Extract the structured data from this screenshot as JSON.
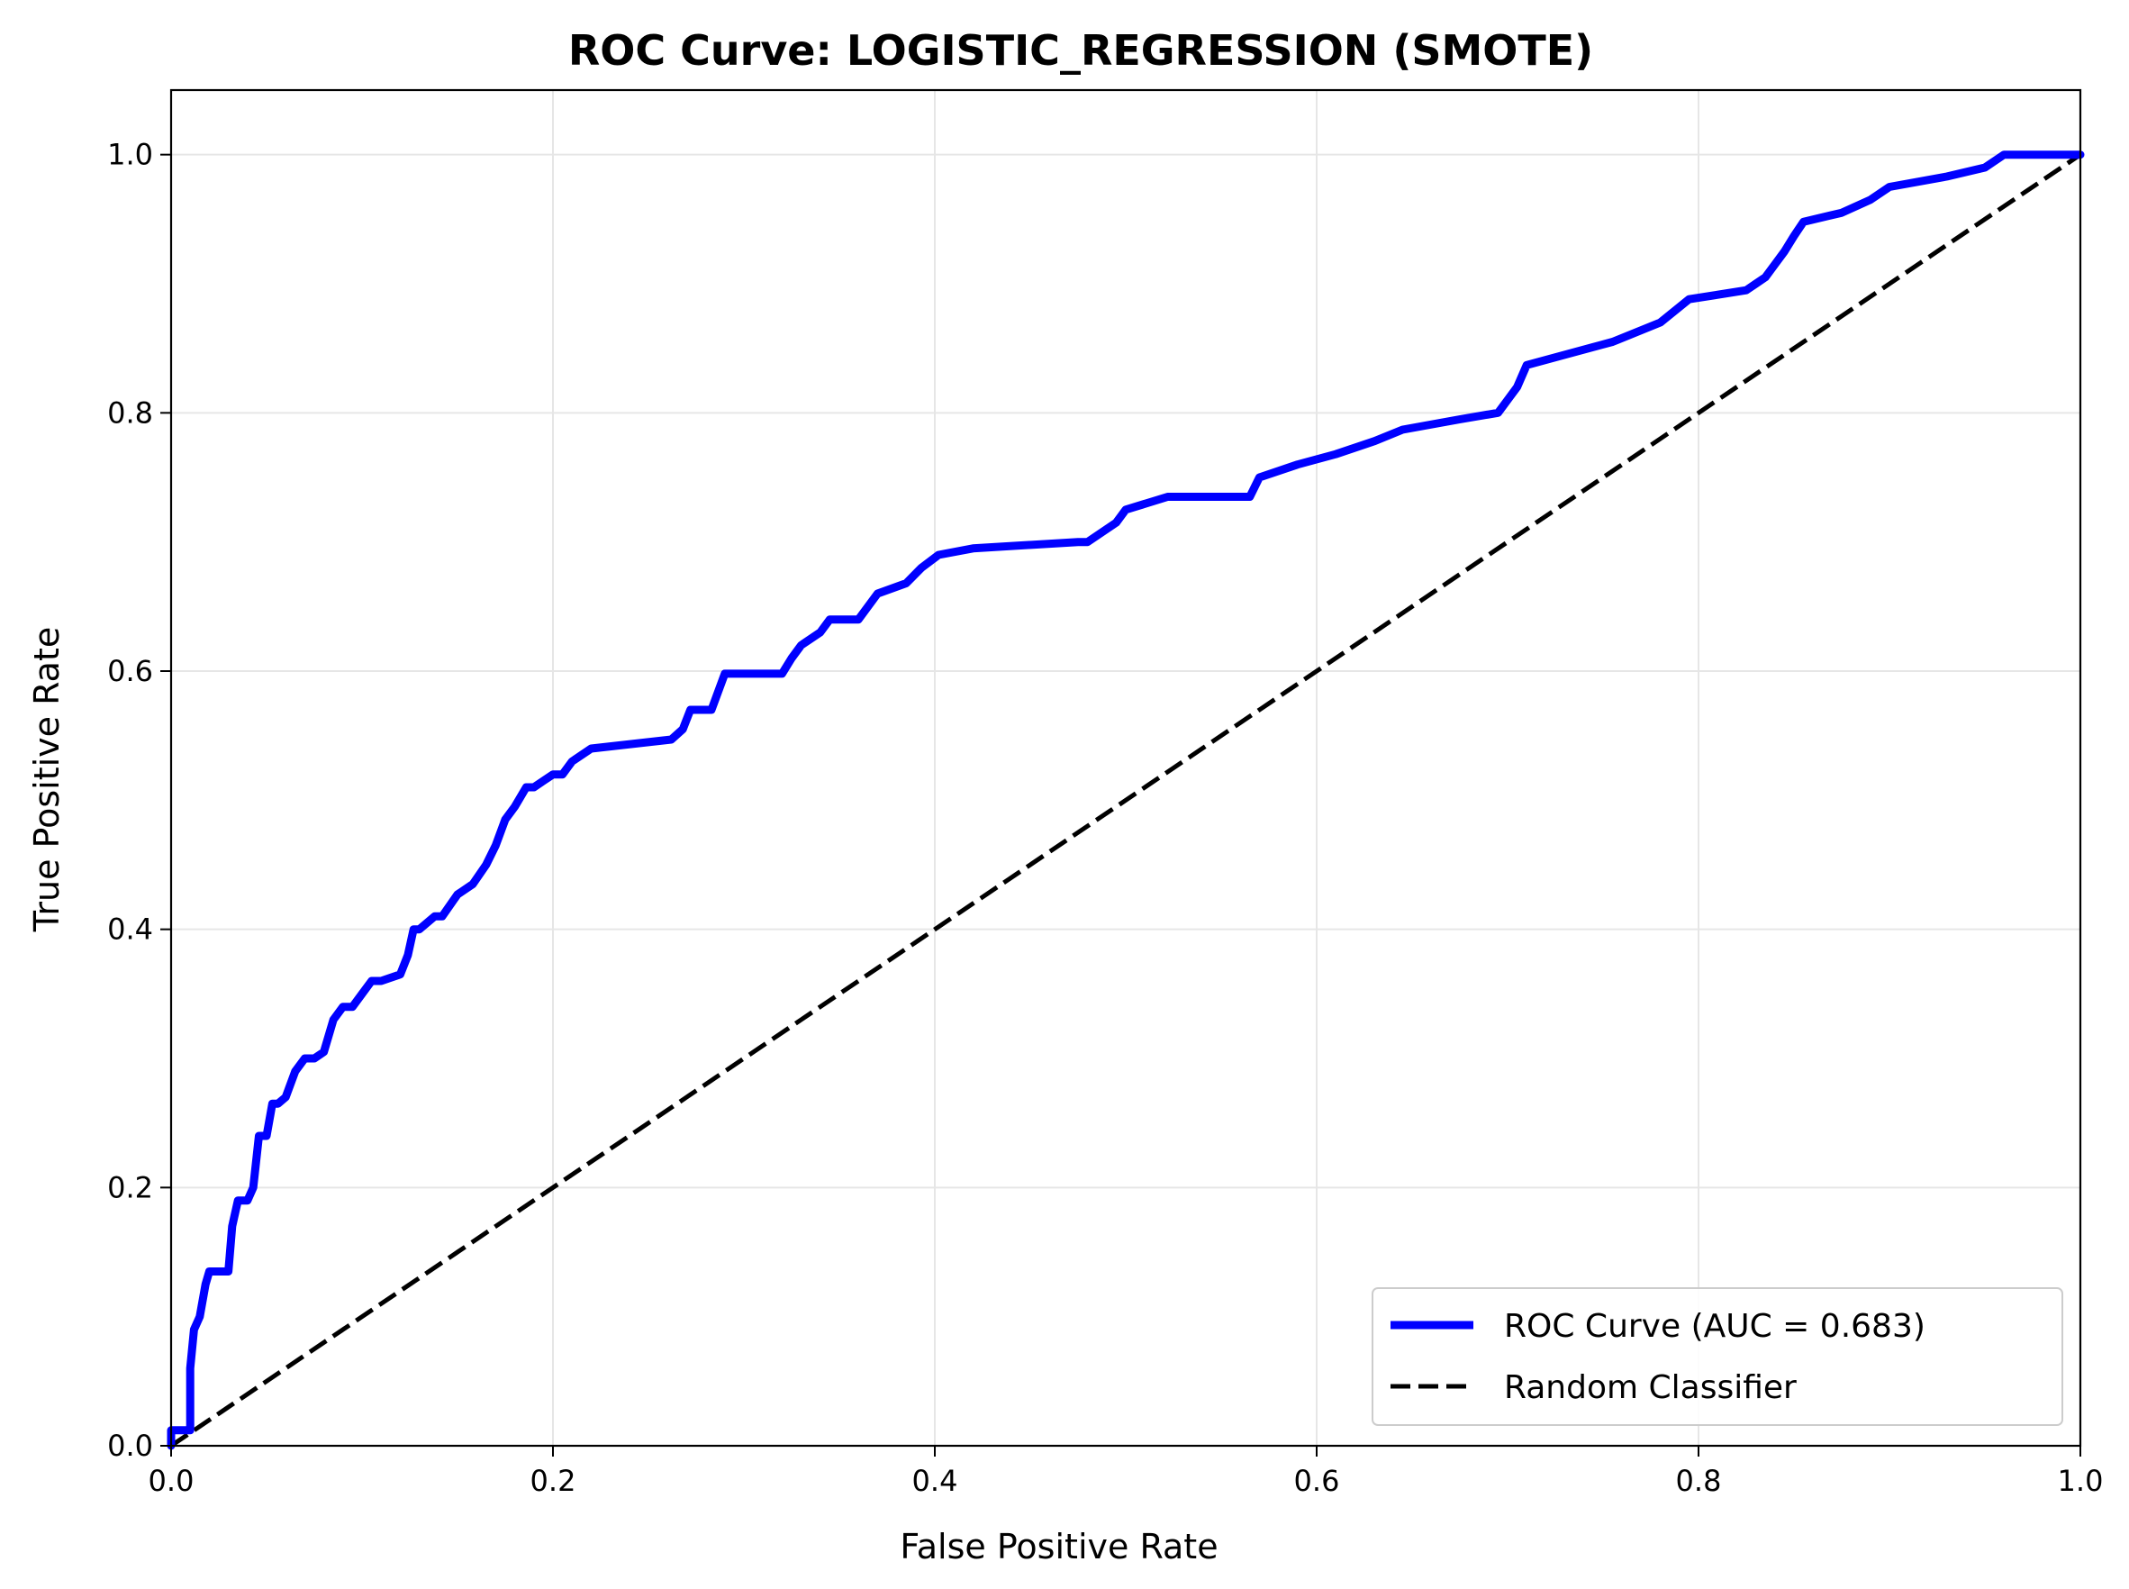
{
  "chart_data": {
    "type": "line",
    "title": "ROC Curve: LOGISTIC_REGRESSION (SMOTE)",
    "xlabel": "False Positive Rate",
    "ylabel": "True Positive Rate",
    "xlim": [
      0,
      1
    ],
    "ylim": [
      0,
      1.05
    ],
    "grid": true,
    "legend_position": "lower-right",
    "x_ticks": [
      "0.0",
      "0.2",
      "0.4",
      "0.6",
      "0.8",
      "1.0"
    ],
    "y_ticks": [
      "0.0",
      "0.2",
      "0.4",
      "0.6",
      "0.8",
      "1.0"
    ],
    "x_tick_values": [
      0,
      0.2,
      0.4,
      0.6,
      0.8,
      1.0
    ],
    "y_tick_values": [
      0,
      0.2,
      0.4,
      0.6,
      0.8,
      1.0
    ],
    "series": [
      {
        "name": "ROC Curve (AUC = 0.683)",
        "color": "#0000ff",
        "style": "solid",
        "x": [
          0,
          0,
          0.01,
          0.01,
          0.012,
          0.015,
          0.018,
          0.02,
          0.022,
          0.03,
          0.032,
          0.035,
          0.04,
          0.043,
          0.046,
          0.05,
          0.053,
          0.056,
          0.06,
          0.065,
          0.07,
          0.075,
          0.08,
          0.085,
          0.09,
          0.095,
          0.1,
          0.105,
          0.11,
          0.12,
          0.124,
          0.127,
          0.13,
          0.138,
          0.142,
          0.15,
          0.158,
          0.165,
          0.17,
          0.175,
          0.18,
          0.186,
          0.19,
          0.195,
          0.2,
          0.205,
          0.21,
          0.22,
          0.262,
          0.268,
          0.272,
          0.283,
          0.288,
          0.29,
          0.32,
          0.325,
          0.33,
          0.34,
          0.345,
          0.36,
          0.37,
          0.385,
          0.393,
          0.402,
          0.42,
          0.475,
          0.48,
          0.495,
          0.5,
          0.522,
          0.565,
          0.57,
          0.59,
          0.61,
          0.63,
          0.645,
          0.675,
          0.695,
          0.7,
          0.705,
          0.71,
          0.73,
          0.755,
          0.78,
          0.795,
          0.825,
          0.83,
          0.835,
          0.84,
          0.845,
          0.85,
          0.855,
          0.875,
          0.89,
          0.9,
          0.93,
          0.95,
          0.96,
          1.0
        ],
        "y": [
          0,
          0.012,
          0.012,
          0.06,
          0.09,
          0.1,
          0.125,
          0.135,
          0.135,
          0.135,
          0.17,
          0.19,
          0.19,
          0.2,
          0.24,
          0.24,
          0.265,
          0.265,
          0.27,
          0.29,
          0.3,
          0.3,
          0.305,
          0.33,
          0.34,
          0.34,
          0.35,
          0.36,
          0.36,
          0.365,
          0.38,
          0.4,
          0.4,
          0.41,
          0.41,
          0.427,
          0.435,
          0.45,
          0.465,
          0.485,
          0.495,
          0.51,
          0.51,
          0.515,
          0.52,
          0.52,
          0.53,
          0.54,
          0.547,
          0.555,
          0.57,
          0.57,
          0.59,
          0.598,
          0.598,
          0.61,
          0.62,
          0.63,
          0.64,
          0.64,
          0.66,
          0.668,
          0.68,
          0.69,
          0.695,
          0.7,
          0.7,
          0.715,
          0.725,
          0.735,
          0.735,
          0.75,
          0.76,
          0.768,
          0.778,
          0.787,
          0.795,
          0.8,
          0.81,
          0.82,
          0.837,
          0.845,
          0.855,
          0.87,
          0.888,
          0.895,
          0.9,
          0.905,
          0.915,
          0.925,
          0.937,
          0.948,
          0.955,
          0.965,
          0.975,
          0.983,
          0.99,
          1.0,
          1.0
        ]
      },
      {
        "name": "Random Classifier",
        "color": "#000000",
        "style": "dashed",
        "x": [
          0,
          1
        ],
        "y": [
          0,
          1
        ]
      }
    ]
  }
}
